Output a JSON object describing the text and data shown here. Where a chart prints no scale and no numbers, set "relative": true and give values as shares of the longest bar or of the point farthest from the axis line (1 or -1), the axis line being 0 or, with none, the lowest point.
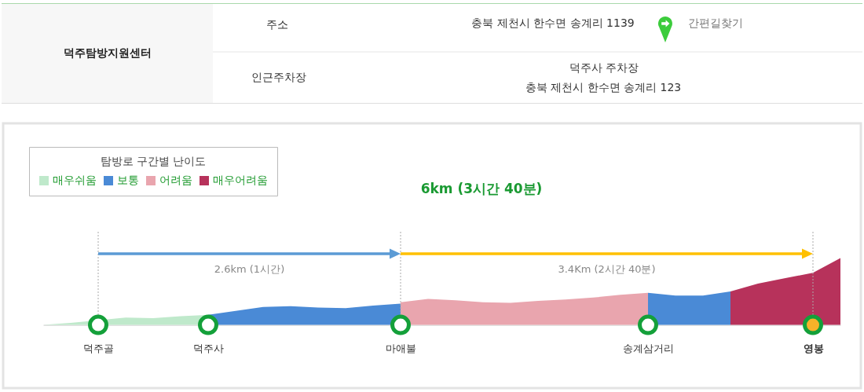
{
  "chart_data": [
    {
      "type": "other",
      "annotations": [
        "덕주탐방지원센터",
        "주소",
        "충북 제천시 한수면 송계리 1139",
        "간편길찾기",
        "인근주차장",
        "덕주사 주차장",
        "충북 제천시 한수면 송계리 123"
      ]
    },
    {
      "type": "area",
      "title": "6km (3시간 40분)",
      "legend_title": "탐방로 구간별 난이도",
      "legend": "top left",
      "relative": true,
      "categories": [
        null,
        null,
        "덕주골",
        null,
        null,
        null,
        "덕주사",
        null,
        null,
        null,
        null,
        null,
        null,
        "마애불",
        null,
        null,
        null,
        null,
        null,
        null,
        null,
        null,
        "송계삼거리",
        null,
        null,
        null,
        null,
        null,
        "영봉",
        null
      ],
      "series": [
        {
          "name": "매우쉬움",
          "color": "#bfe9cb",
          "values": [
            0,
            0.03,
            null,
            0.11,
            0.1,
            0.13,
            0.15,
            null,
            null,
            null,
            null,
            null,
            null,
            null,
            null,
            null,
            null,
            null,
            null,
            null,
            null,
            null,
            null,
            null,
            null,
            null,
            null,
            null,
            null,
            null
          ]
        },
        {
          "name": "보통",
          "color": "#4a8ad6",
          "values": [
            null,
            null,
            null,
            null,
            null,
            null,
            0.15,
            0.21,
            0.27,
            0.28,
            0.26,
            0.25,
            0.29,
            0.32,
            null,
            null,
            null,
            null,
            null,
            null,
            null,
            null,
            null,
            null,
            null,
            null,
            null,
            null,
            null,
            null
          ]
        },
        {
          "name": "어려움",
          "color": "#e9a5ae",
          "values": [
            null,
            null,
            null,
            null,
            null,
            null,
            null,
            null,
            null,
            null,
            null,
            null,
            null,
            0.34,
            0.39,
            0.37,
            0.34,
            0.33,
            0.36,
            0.38,
            0.41,
            0.45,
            0.48,
            null,
            null,
            null,
            null,
            null,
            null,
            null
          ]
        },
        {
          "color": "#4a8ad6",
          "values": [
            null,
            null,
            null,
            null,
            null,
            null,
            null,
            null,
            null,
            null,
            null,
            null,
            null,
            null,
            null,
            null,
            null,
            null,
            null,
            null,
            null,
            null,
            0.48,
            0.44,
            0.44,
            0.5,
            null,
            null,
            null,
            null
          ]
        },
        {
          "name": "매우어려움",
          "color": "#b7325b",
          "values": [
            null,
            null,
            null,
            null,
            null,
            null,
            null,
            null,
            null,
            null,
            null,
            null,
            null,
            null,
            null,
            null,
            null,
            null,
            null,
            null,
            null,
            null,
            null,
            null,
            null,
            0.5,
            0.62,
            0.7,
            0.78,
            1.0
          ]
        },
        {
          "type": "scatter",
          "marker": "circle",
          "color": "#14a03a",
          "colors": [
            "#ffffff",
            "#ffffff",
            "#ffffff",
            "#ffffff",
            "#f8b229"
          ],
          "x": [
            "덕주골",
            "덕주사",
            "마애불",
            "송계삼거리",
            "영봉"
          ],
          "values": [
            0,
            0,
            0,
            0,
            0
          ]
        }
      ],
      "ref_lines": [
        {
          "axis": "x",
          "value": "덕주골",
          "line_style": "dotted",
          "color": "#aaaaaa"
        },
        {
          "axis": "x",
          "value": "마애불",
          "line_style": "dotted",
          "color": "#aaaaaa"
        },
        {
          "axis": "x",
          "value": "영봉",
          "line_style": "dotted",
          "color": "#aaaaaa"
        }
      ],
      "annotations": [
        "2.6km (1시간)",
        "3.4Km (2시간 40분)"
      ]
    }
  ]
}
